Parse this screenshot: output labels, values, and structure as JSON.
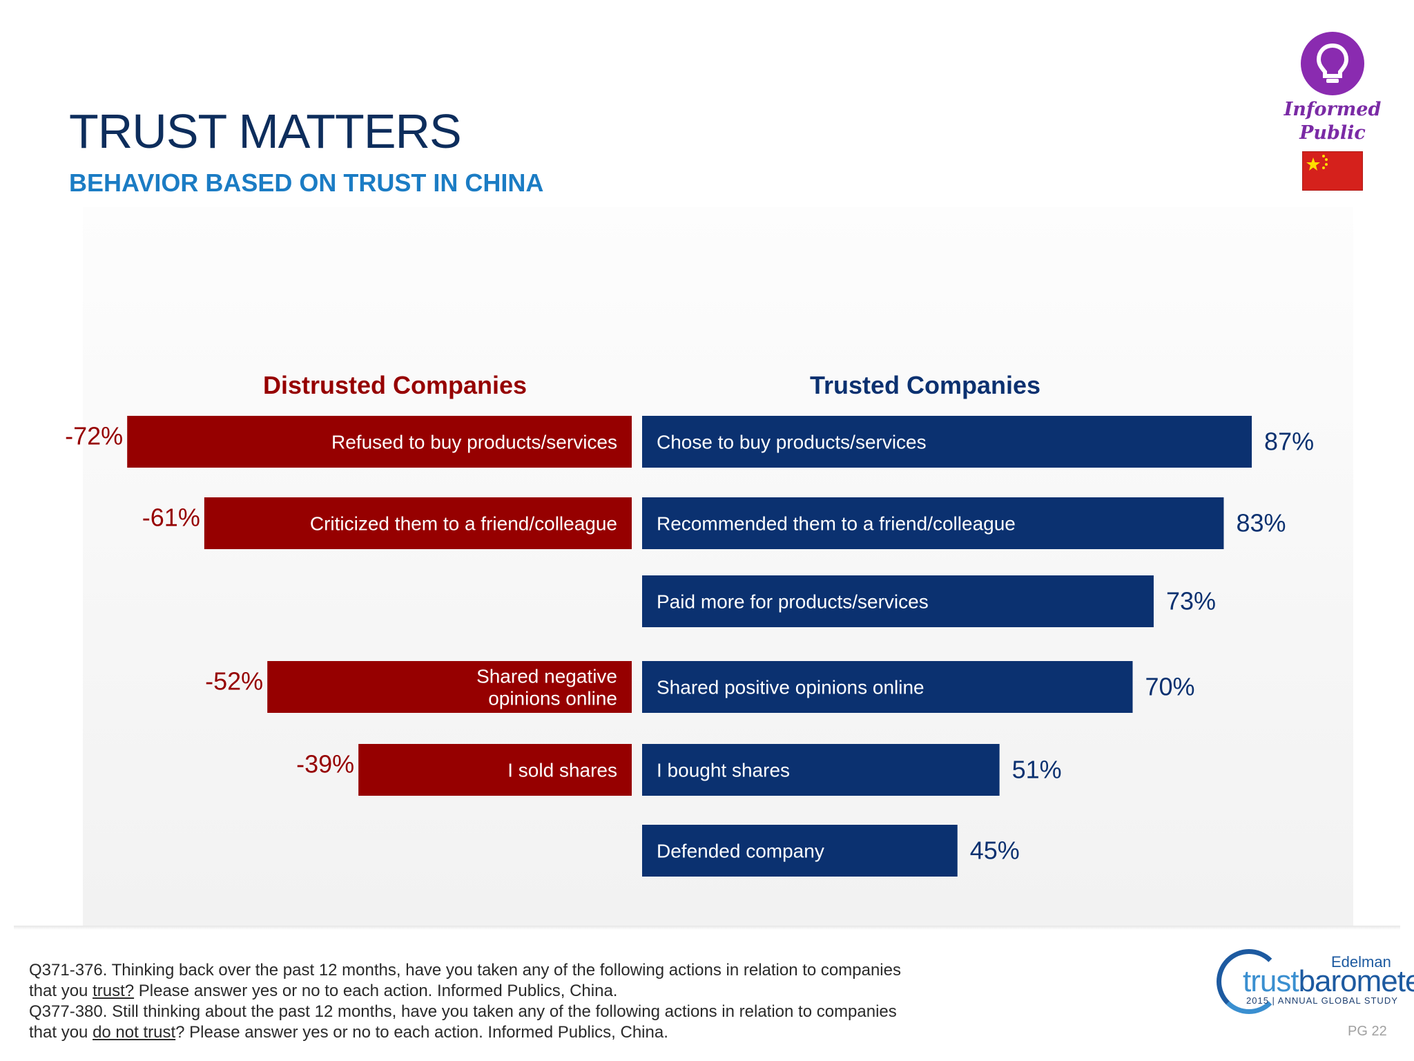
{
  "header": {
    "title": "TRUST MATTERS",
    "subtitle": "BEHAVIOR BASED ON TRUST IN CHINA"
  },
  "badge": {
    "label_line1": "Informed",
    "label_line2": "Public",
    "icon": "lightbulb-icon",
    "flag": "china-flag-icon"
  },
  "colors": {
    "distrusted": "#960000",
    "trusted": "#0b3170",
    "title": "#0d2d5c",
    "subtitle": "#1b7cc4"
  },
  "chart_data": {
    "type": "bar",
    "orientation": "horizontal-diverging",
    "left_heading": "Distrusted Companies",
    "right_heading": "Trusted Companies",
    "value_unit": "%",
    "rows": [
      {
        "distrusted": {
          "label": "Refused to buy products/services",
          "value": -72,
          "display": "-72%"
        },
        "trusted": {
          "label": "Chose to buy products/services",
          "value": 87,
          "display": "87%"
        }
      },
      {
        "distrusted": {
          "label": "Criticized them to a friend/colleague",
          "value": -61,
          "display": "-61%"
        },
        "trusted": {
          "label": "Recommended them to a friend/colleague",
          "value": 83,
          "display": "83%"
        }
      },
      {
        "distrusted": null,
        "trusted": {
          "label": "Paid more for products/services",
          "value": 73,
          "display": "73%"
        }
      },
      {
        "distrusted": {
          "label": "Shared negative opinions online",
          "label_lines": [
            "Shared negative",
            "opinions online"
          ],
          "value": -52,
          "display": "-52%"
        },
        "trusted": {
          "label": "Shared positive opinions online",
          "value": 70,
          "display": "70%"
        }
      },
      {
        "distrusted": {
          "label": "I sold shares",
          "value": -39,
          "display": "-39%"
        },
        "trusted": {
          "label": "I bought shares",
          "value": 51,
          "display": "51%"
        }
      },
      {
        "distrusted": null,
        "trusted": {
          "label": "Defended company",
          "value": 45,
          "display": "45%"
        }
      }
    ]
  },
  "footnote": {
    "q1_a": "Q371-376. Thinking back over the past 12 months, have you taken any of the following actions in relation to companies",
    "q1_b_pre": "that you ",
    "q1_b_link": "trust?",
    "q1_b_post": " Please answer yes or no to each action. Informed Publics, China.",
    "q2_a": "Q377-380. Still thinking about the past 12 months, have you taken any of the following actions in relation to companies",
    "q2_b_pre": "that you ",
    "q2_b_link": "do not trust",
    "q2_b_post": "? Please answer yes or no to each action. Informed Publics, China."
  },
  "logo": {
    "brand": "Edelman",
    "word_thin": "trust",
    "word_bold": "barometer",
    "tagline": "2015 | ANNUAL GLOBAL STUDY"
  },
  "page_number": "PG 22"
}
